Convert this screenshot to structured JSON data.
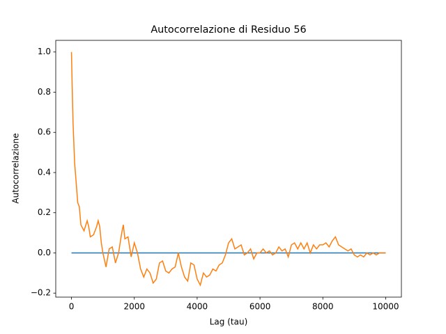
{
  "chart_data": {
    "type": "line",
    "title": "Autocorrelazione di Residuo 56",
    "xlabel": "Lag (tau)",
    "ylabel": "Autocorrelazione",
    "series": [
      {
        "color": "#1f77b4",
        "x": [
          0,
          10000
        ],
        "values": [
          0,
          0
        ]
      },
      {
        "color": "#ff7f0e",
        "x": [
          0,
          20,
          50,
          100,
          150,
          200,
          250,
          300,
          400,
          500,
          550,
          600,
          700,
          800,
          850,
          900,
          950,
          1000,
          1100,
          1200,
          1300,
          1400,
          1500,
          1600,
          1650,
          1700,
          1800,
          1900,
          2000,
          2100,
          2200,
          2300,
          2400,
          2500,
          2600,
          2700,
          2800,
          2900,
          3000,
          3100,
          3200,
          3300,
          3400,
          3500,
          3600,
          3700,
          3800,
          3900,
          4000,
          4100,
          4200,
          4300,
          4400,
          4500,
          4600,
          4700,
          4800,
          4900,
          5000,
          5100,
          5200,
          5300,
          5400,
          5500,
          5600,
          5700,
          5800,
          5900,
          6000,
          6100,
          6200,
          6300,
          6400,
          6500,
          6600,
          6700,
          6800,
          6900,
          7000,
          7100,
          7200,
          7300,
          7400,
          7500,
          7600,
          7700,
          7800,
          7900,
          8000,
          8100,
          8200,
          8300,
          8400,
          8500,
          8600,
          8700,
          8800,
          8900,
          9000,
          9100,
          9200,
          9300,
          9400,
          9500,
          9600,
          9700,
          9800,
          9900,
          10000
        ],
        "values": [
          1.0,
          0.85,
          0.65,
          0.45,
          0.35,
          0.25,
          0.23,
          0.14,
          0.11,
          0.16,
          0.13,
          0.08,
          0.09,
          0.13,
          0.16,
          0.13,
          0.05,
          0.0,
          -0.07,
          0.02,
          0.03,
          -0.05,
          0.0,
          0.1,
          0.14,
          0.07,
          0.08,
          -0.02,
          0.05,
          0.0,
          -0.08,
          -0.12,
          -0.08,
          -0.1,
          -0.15,
          -0.13,
          -0.05,
          -0.04,
          -0.09,
          -0.1,
          -0.08,
          -0.07,
          0.0,
          -0.07,
          -0.12,
          -0.14,
          -0.05,
          -0.06,
          -0.13,
          -0.16,
          -0.1,
          -0.12,
          -0.11,
          -0.08,
          -0.09,
          -0.06,
          -0.05,
          -0.01,
          0.05,
          0.07,
          0.02,
          0.03,
          0.04,
          -0.01,
          0.0,
          0.02,
          -0.03,
          0.0,
          0.0,
          0.02,
          0.0,
          0.01,
          -0.01,
          0.0,
          0.03,
          0.01,
          0.02,
          -0.02,
          0.04,
          0.05,
          0.02,
          0.05,
          0.02,
          0.05,
          0.0,
          0.04,
          0.02,
          0.04,
          0.04,
          0.05,
          0.03,
          0.06,
          0.08,
          0.04,
          0.03,
          0.02,
          0.01,
          0.02,
          -0.01,
          -0.02,
          -0.01,
          -0.02,
          0.0,
          -0.01,
          0.0,
          -0.01,
          0.0,
          0.0,
          0.0
        ]
      }
    ],
    "xlim": [
      -500,
      10500
    ],
    "ylim": [
      -0.22,
      1.058
    ],
    "xticks": [
      0,
      2000,
      4000,
      6000,
      8000,
      10000
    ],
    "yticks": [
      {
        "value": -0.2,
        "label": "−0.2"
      },
      {
        "value": 0,
        "label": "0.0"
      },
      0.2,
      0.4,
      0.6,
      0.8,
      {
        "value": 1,
        "label": "1.0"
      }
    ]
  }
}
